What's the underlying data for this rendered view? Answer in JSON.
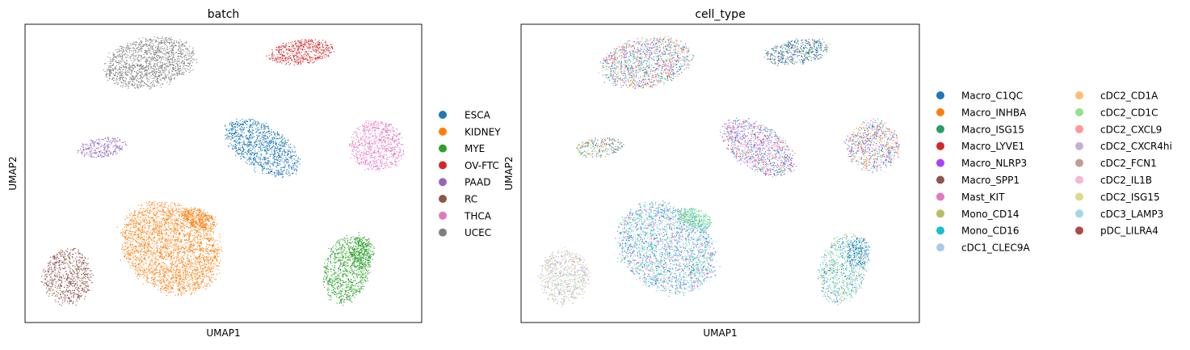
{
  "palette_batch": {
    "ESCA": "#1f77b4",
    "KIDNEY": "#ff7f0e",
    "MYE": "#2ca02c",
    "OV-FTC": "#d62728",
    "PAAD": "#9467bd",
    "RC": "#8c564b",
    "THCA": "#e377c2",
    "UCEC": "#7f7f7f"
  },
  "chart_data": [
    {
      "type": "scatter",
      "title": "batch",
      "xlabel": "UMAP1",
      "ylabel": "UMAP2",
      "grid": false,
      "ticks": false,
      "legend_position": "right",
      "legend": [
        "ESCA",
        "KIDNEY",
        "MYE",
        "OV-FTC",
        "PAAD",
        "RC",
        "THCA",
        "UCEC"
      ],
      "clusters": [
        {
          "batch": "UCEC",
          "color": "#7f7f7f",
          "center_frac": [
            0.31,
            0.21
          ],
          "density": "dense"
        },
        {
          "batch": "OV-FTC",
          "color": "#d62728",
          "center_frac": [
            0.72,
            0.16
          ],
          "density": "dense"
        },
        {
          "batch": "PAAD",
          "color": "#9467bd",
          "center_frac": [
            0.2,
            0.44
          ],
          "density": "dense"
        },
        {
          "batch": "ESCA",
          "color": "#1f77b4",
          "center_frac": [
            0.6,
            0.45
          ],
          "density": "dense"
        },
        {
          "batch": "THCA",
          "color": "#e377c2",
          "center_frac": [
            0.93,
            0.44
          ],
          "density": "dense"
        },
        {
          "batch": "KIDNEY",
          "color": "#ff7f0e",
          "center_frac": [
            0.37,
            0.72
          ],
          "density": "dense"
        },
        {
          "batch": "RC",
          "color": "#8c564b",
          "center_frac": [
            0.11,
            0.83
          ],
          "density": "dense"
        },
        {
          "batch": "MYE",
          "color": "#2ca02c",
          "center_frac": [
            0.83,
            0.81
          ],
          "density": "dense"
        }
      ]
    },
    {
      "type": "scatter",
      "title": "cell_type",
      "xlabel": "UMAP1",
      "ylabel": "UMAP2",
      "grid": false,
      "ticks": false,
      "legend_position": "right",
      "legend_columns": 2,
      "legend": [
        {
          "name": "Macro_C1QC",
          "color": "#1f77b4"
        },
        {
          "name": "Macro_INHBA",
          "color": "#ff7f0e"
        },
        {
          "name": "Macro_ISG15",
          "color": "#279e68"
        },
        {
          "name": "Macro_LYVE1",
          "color": "#d62728"
        },
        {
          "name": "Macro_NLRP3",
          "color": "#aa40fc"
        },
        {
          "name": "Macro_SPP1",
          "color": "#8c564b"
        },
        {
          "name": "Mast_KIT",
          "color": "#e377c2"
        },
        {
          "name": "Mono_CD14",
          "color": "#b5bd61"
        },
        {
          "name": "Mono_CD16",
          "color": "#17becf"
        },
        {
          "name": "cDC1_CLEC9A",
          "color": "#aec7e8"
        },
        {
          "name": "cDC2_CD1A",
          "color": "#ffbb78"
        },
        {
          "name": "cDC2_CD1C",
          "color": "#98df8a"
        },
        {
          "name": "cDC2_CXCL9",
          "color": "#ff9896"
        },
        {
          "name": "cDC2_CXCR4hi",
          "color": "#c5b0d5"
        },
        {
          "name": "cDC2_FCN1",
          "color": "#c49c94"
        },
        {
          "name": "cDC2_IL1B",
          "color": "#f7b6d2"
        },
        {
          "name": "cDC2_ISG15",
          "color": "#dbdb8d"
        },
        {
          "name": "cDC3_LAMP3",
          "color": "#9edae5"
        },
        {
          "name": "pDC_LILRA4",
          "color": "#ad494a"
        }
      ]
    }
  ]
}
